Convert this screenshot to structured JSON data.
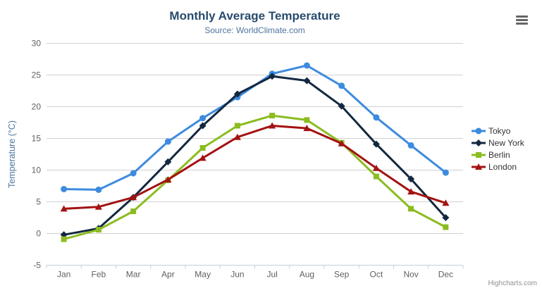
{
  "chart": {
    "credits_label": "Highcharts.com",
    "background_color": "#ffffff",
    "icons": {
      "context_menu": "hamburger-icon"
    }
  },
  "styles": {
    "title_color": "#274b6d",
    "subtitle_color": "#4d759e",
    "axis_label_color": "#606060",
    "axis_title_color": "#4d759e",
    "legend_text_color": "#333333",
    "grid_color": "#d0d0d0",
    "axis_line_color": "#c0d0e0",
    "credits_color": "#909090",
    "menu_icon_color": "#666666"
  },
  "chart_data": {
    "type": "line",
    "title": "Monthly Average Temperature",
    "subtitle": "Source: WorldClimate.com",
    "xlabel": "",
    "ylabel": "Temperature (°C)",
    "ylim": [
      -5,
      30
    ],
    "ytick_interval": 5,
    "grid": true,
    "legend_position": "right",
    "categories": [
      "Jan",
      "Feb",
      "Mar",
      "Apr",
      "May",
      "Jun",
      "Jul",
      "Aug",
      "Sep",
      "Oct",
      "Nov",
      "Dec"
    ],
    "series": [
      {
        "name": "Tokyo",
        "symbol": "circle",
        "color": "#3d8bdf",
        "values": [
          7.0,
          6.9,
          9.5,
          14.5,
          18.2,
          21.5,
          25.2,
          26.5,
          23.3,
          18.3,
          13.9,
          9.6
        ]
      },
      {
        "name": "New York",
        "symbol": "diamond",
        "color": "#13283f",
        "values": [
          -0.2,
          0.8,
          5.7,
          11.3,
          17.0,
          22.0,
          24.8,
          24.1,
          20.1,
          14.1,
          8.6,
          2.5
        ]
      },
      {
        "name": "Berlin",
        "symbol": "square",
        "color": "#8bbc21",
        "values": [
          -0.9,
          0.6,
          3.5,
          8.4,
          13.5,
          17.0,
          18.6,
          17.9,
          14.3,
          9.0,
          3.9,
          1.0
        ]
      },
      {
        "name": "London",
        "symbol": "triangle",
        "color": "#a31212",
        "values": [
          3.9,
          4.2,
          5.7,
          8.5,
          11.9,
          15.2,
          17.0,
          16.6,
          14.2,
          10.3,
          6.6,
          4.8
        ]
      }
    ]
  }
}
